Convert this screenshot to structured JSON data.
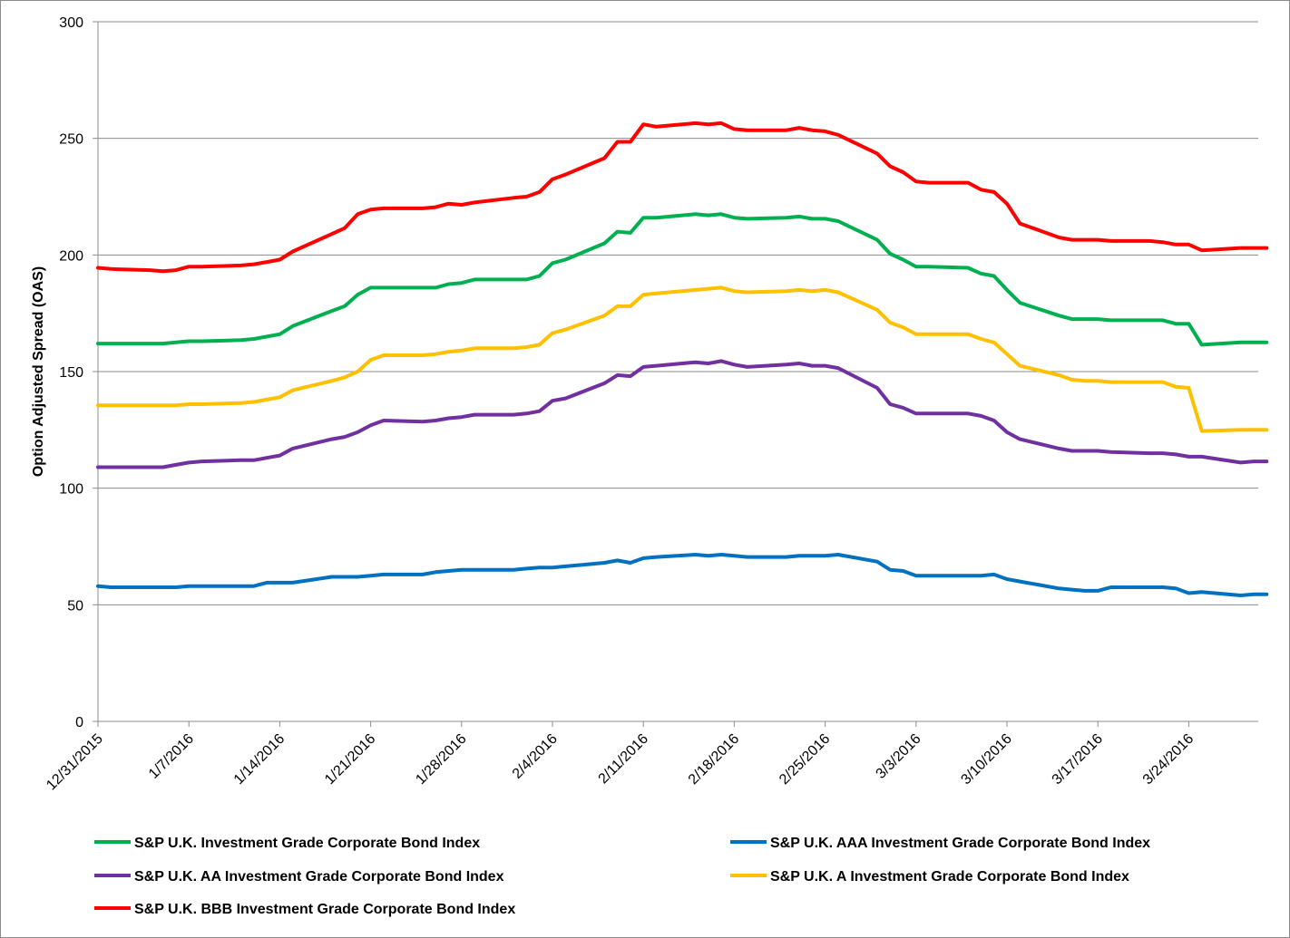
{
  "chart_data": {
    "type": "line",
    "title": "",
    "xlabel": "",
    "ylabel": "Option Adjusted Spread (OAS)",
    "ylim": [
      0,
      300
    ],
    "y_ticks": [
      0,
      50,
      100,
      150,
      200,
      250,
      300
    ],
    "x_tick_labels": [
      "12/31/2015",
      "1/7/2016",
      "1/14/2016",
      "1/21/2016",
      "1/28/2016",
      "2/4/2016",
      "2/11/2016",
      "2/18/2016",
      "2/25/2016",
      "3/3/2016",
      "3/10/2016",
      "3/17/2016",
      "3/24/2016"
    ],
    "x": [
      "12/31/2015",
      "1/1/2016",
      "1/4/2016",
      "1/5/2016",
      "1/6/2016",
      "1/7/2016",
      "1/8/2016",
      "1/11/2016",
      "1/12/2016",
      "1/13/2016",
      "1/14/2016",
      "1/15/2016",
      "1/18/2016",
      "1/19/2016",
      "1/20/2016",
      "1/21/2016",
      "1/22/2016",
      "1/25/2016",
      "1/26/2016",
      "1/27/2016",
      "1/28/2016",
      "1/29/2016",
      "2/1/2016",
      "2/2/2016",
      "2/3/2016",
      "2/4/2016",
      "2/5/2016",
      "2/8/2016",
      "2/9/2016",
      "2/10/2016",
      "2/11/2016",
      "2/12/2016",
      "2/15/2016",
      "2/16/2016",
      "2/17/2016",
      "2/18/2016",
      "2/19/2016",
      "2/22/2016",
      "2/23/2016",
      "2/24/2016",
      "2/25/2016",
      "2/26/2016",
      "2/29/2016",
      "3/1/2016",
      "3/2/2016",
      "3/3/2016",
      "3/4/2016",
      "3/7/2016",
      "3/8/2016",
      "3/9/2016",
      "3/10/2016",
      "3/11/2016",
      "3/14/2016",
      "3/15/2016",
      "3/16/2016",
      "3/17/2016",
      "3/18/2016",
      "3/21/2016",
      "3/22/2016",
      "3/23/2016",
      "3/24/2016",
      "3/25/2016",
      "3/28/2016",
      "3/29/2016",
      "3/30/2016"
    ],
    "series": [
      {
        "name": "S&P U.K. Investment Grade Corporate Bond Index",
        "color": "#00b050",
        "values": [
          162,
          162,
          162,
          162,
          162.5,
          163,
          163,
          163.5,
          164,
          165,
          166,
          169.5,
          176,
          178,
          183,
          186,
          186,
          186,
          186,
          187.5,
          188,
          189.5,
          189.5,
          189.5,
          191,
          196.5,
          198,
          205,
          210,
          209.5,
          216,
          216,
          217.5,
          217,
          217.5,
          216,
          215.5,
          216,
          216.5,
          215.5,
          215.5,
          214.5,
          206.5,
          200.5,
          198,
          195,
          195,
          194.5,
          192,
          191,
          185,
          179.5,
          174,
          172.5,
          172.5,
          172.5,
          172,
          172,
          172,
          170.5,
          170.5,
          161.5,
          162.5,
          162.5,
          162.5
        ]
      },
      {
        "name": "S&P U.K. AAA Investment Grade Corporate Bond Index",
        "color": "#0070c0",
        "values": [
          58,
          57.5,
          57.5,
          57.5,
          57.5,
          58,
          58,
          58,
          58,
          59.5,
          59.5,
          59.5,
          62,
          62,
          62,
          62.5,
          63,
          63,
          64,
          64.5,
          65,
          65,
          65,
          65.5,
          66,
          66,
          66.5,
          68,
          69,
          68,
          70,
          70.5,
          71.5,
          71,
          71.5,
          71,
          70.5,
          70.5,
          71,
          71,
          71,
          71.5,
          68.5,
          65,
          64.5,
          62.5,
          62.5,
          62.5,
          62.5,
          63,
          61,
          60,
          57,
          56.5,
          56,
          56,
          57.5,
          57.5,
          57.5,
          57,
          55,
          55.5,
          54,
          54.5,
          54.5
        ]
      },
      {
        "name": "S&P U.K. AA Investment Grade Corporate Bond Index",
        "color": "#7030a0",
        "values": [
          109,
          109,
          109,
          109,
          110,
          111,
          111.5,
          112,
          112,
          113,
          114,
          117,
          121,
          122,
          124,
          127,
          129,
          128.5,
          129,
          130,
          130.5,
          131.5,
          131.5,
          132,
          133,
          137.5,
          138.5,
          145,
          148.5,
          148,
          152,
          152.5,
          154,
          153.5,
          154.5,
          153,
          152,
          153,
          153.5,
          152.5,
          152.5,
          151.5,
          143,
          136,
          134.5,
          132,
          132,
          132,
          131,
          129,
          124,
          121,
          117,
          116,
          116,
          116,
          115.5,
          115,
          115,
          114.5,
          113.5,
          113.5,
          111,
          111.5,
          111.5
        ]
      },
      {
        "name": "S&P U.K. A Investment Grade Corporate Bond Index",
        "color": "#ffc000",
        "values": [
          135.5,
          135.5,
          135.5,
          135.5,
          135.5,
          136,
          136,
          136.5,
          137,
          138,
          139,
          142,
          146,
          147.5,
          150,
          155,
          157,
          157,
          157.5,
          158.5,
          159,
          160,
          160,
          160.5,
          161.5,
          166.5,
          168,
          174,
          178,
          178,
          183,
          183.5,
          185,
          185.5,
          186,
          184.5,
          184,
          184.5,
          185,
          184.5,
          185,
          184,
          176.5,
          171,
          169,
          166,
          166,
          166,
          164,
          162.5,
          157.5,
          152.5,
          148.5,
          146.5,
          146,
          146,
          145.5,
          145.5,
          145.5,
          143.5,
          143,
          124.5,
          125,
          125,
          125
        ]
      },
      {
        "name": "S&P U.K. BBB Investment Grade Corporate Bond Index",
        "color": "#ff0000",
        "values": [
          194.5,
          194,
          193.5,
          193,
          193.5,
          195,
          195,
          195.5,
          196,
          197,
          198,
          201.5,
          209,
          211.5,
          217.5,
          219.5,
          220,
          220,
          220.5,
          222,
          221.5,
          222.5,
          224.5,
          225,
          227,
          232.5,
          234.5,
          241.5,
          248.5,
          248.5,
          256,
          255,
          256.5,
          256,
          256.5,
          254,
          253.5,
          253.5,
          254.5,
          253.5,
          253,
          251.5,
          243.5,
          238,
          235.5,
          231.5,
          231,
          231,
          228,
          227,
          222,
          213.5,
          207.5,
          206.5,
          206.5,
          206.5,
          206,
          206,
          205.5,
          204.5,
          204.5,
          202,
          203,
          203,
          203
        ]
      }
    ],
    "legend": {
      "placement": "bottom",
      "entries": [
        "S&P U.K. Investment Grade Corporate Bond Index",
        "S&P U.K. AAA Investment Grade Corporate Bond Index",
        "S&P U.K. AA Investment Grade Corporate Bond Index",
        "S&P U.K. A Investment Grade Corporate Bond Index",
        "S&P U.K. BBB Investment Grade Corporate Bond Index"
      ]
    },
    "grid": "horizontal",
    "gridline_color": "#8c8c8c"
  }
}
